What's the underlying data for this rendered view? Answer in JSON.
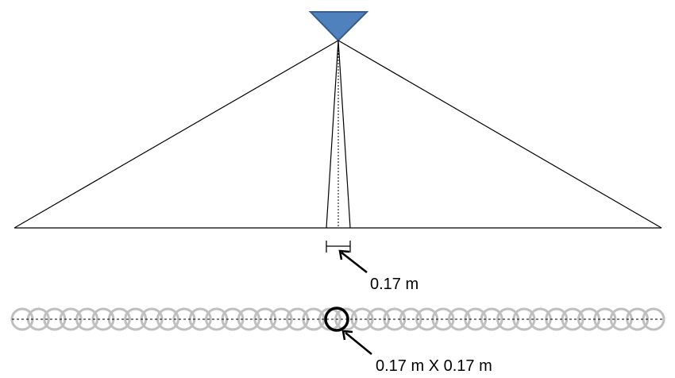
{
  "labels": {
    "spot_width": "0.17 m",
    "pixel_size": "0.17 m X 0.17 m"
  },
  "footprints": {
    "count": 40,
    "highlighted_index": 20
  },
  "colors": {
    "sensor_fill": "#4F81BD",
    "sensor_stroke": "#385D8A",
    "footprint_ring": "#BFBFBF",
    "highlight_ring": "#000000",
    "line": "#000000"
  }
}
